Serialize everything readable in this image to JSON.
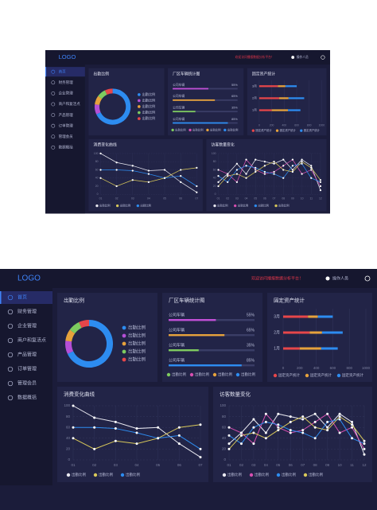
{
  "header": {
    "logo": "LOGO",
    "notice": "欢迎访问播报数据分析平台！",
    "user": "操作人员"
  },
  "sidebar": {
    "items": [
      "首页",
      "财务管理",
      "企业管理",
      "商户和复活点",
      "产品管理",
      "订单管理",
      "管理会员",
      "数据概括"
    ],
    "active": 0
  },
  "chart_data": [
    {
      "type": "pie",
      "title": "出勤比例",
      "categories": [
        "出勤比例",
        "出勤比例",
        "出勤比例",
        "出勤比例",
        "出勤比例"
      ],
      "values": [
        68,
        9,
        8,
        8,
        7
      ],
      "colors": [
        "#2d8cf0",
        "#b44fd6",
        "#e6a23c",
        "#7ecb5f",
        "#e6464a"
      ]
    },
    {
      "type": "bar",
      "title": "厂区车辆统计图",
      "categories": [
        "公司车辆",
        "公司车辆",
        "公司车辆",
        "公司车辆"
      ],
      "values": [
        55,
        65,
        35,
        85
      ],
      "value_labels": [
        "55%",
        "65%",
        "35%",
        "85%"
      ],
      "colors": [
        "#c04fd6",
        "#e6a23c",
        "#7ecb5f",
        "#2d8cf0"
      ],
      "xlim": [
        0,
        100
      ],
      "legend": {
        "labels": [
          "出勤比例",
          "出勤比例",
          "出勤比例",
          "出勤比例"
        ],
        "colors": [
          "#7ecb5f",
          "#d64fb0",
          "#e6a23c",
          "#2d8cf0"
        ]
      }
    },
    {
      "type": "stackedbar",
      "title": "固定资产统计",
      "categories": [
        "3月",
        "2月",
        "1月"
      ],
      "series": [
        {
          "name": "固定资产统计",
          "color": "#e6464a",
          "values": [
            300,
            320,
            200
          ]
        },
        {
          "name": "固定资产统计",
          "color": "#e6a23c",
          "values": [
            120,
            150,
            260
          ]
        },
        {
          "name": "固定资产统计",
          "color": "#2d8cf0",
          "values": [
            180,
            250,
            200
          ]
        }
      ],
      "xlim": [
        0,
        1000
      ],
      "xticks": [
        0,
        200,
        400,
        600,
        800,
        1000
      ]
    },
    {
      "type": "line",
      "title": "消费变化曲线",
      "categories": [
        "01",
        "02",
        "03",
        "04",
        "05",
        "06",
        "07"
      ],
      "series": [
        {
          "name": "出勤比例",
          "color": "#e8e8f0",
          "values": [
            100,
            78,
            70,
            58,
            60,
            30,
            5
          ]
        },
        {
          "name": "出勤比例",
          "color": "#d8c85a",
          "values": [
            40,
            20,
            35,
            30,
            40,
            60,
            65
          ]
        },
        {
          "name": "出勤比例",
          "color": "#2d8cf0",
          "values": [
            60,
            60,
            58,
            50,
            40,
            45,
            20
          ]
        }
      ],
      "ylim": [
        0,
        100
      ],
      "yticks": [
        0,
        20,
        40,
        60,
        80,
        100
      ]
    },
    {
      "type": "line",
      "title": "访客数量变化",
      "categories": [
        "01",
        "02",
        "03",
        "04",
        "05",
        "06",
        "07",
        "08",
        "09",
        "10",
        "11",
        "12"
      ],
      "series": [
        {
          "name": "出勤比例",
          "color": "#e8e8f0",
          "values": [
            30,
            50,
            75,
            50,
            85,
            80,
            75,
            85,
            60,
            85,
            70,
            10
          ]
        },
        {
          "name": "出勤比例",
          "color": "#d64fb0",
          "values": [
            60,
            50,
            30,
            85,
            60,
            50,
            55,
            70,
            85,
            50,
            60,
            20
          ]
        },
        {
          "name": "出勤比例",
          "color": "#2d8cf0",
          "values": [
            45,
            30,
            60,
            70,
            65,
            55,
            50,
            40,
            70,
            75,
            40,
            30
          ]
        },
        {
          "name": "出勤比例",
          "color": "#d8c85a",
          "values": [
            20,
            45,
            50,
            40,
            55,
            70,
            80,
            60,
            55,
            80,
            65,
            35
          ]
        }
      ],
      "ylim": [
        0,
        100
      ],
      "yticks": [
        0,
        20,
        40,
        60,
        80,
        100
      ]
    }
  ]
}
